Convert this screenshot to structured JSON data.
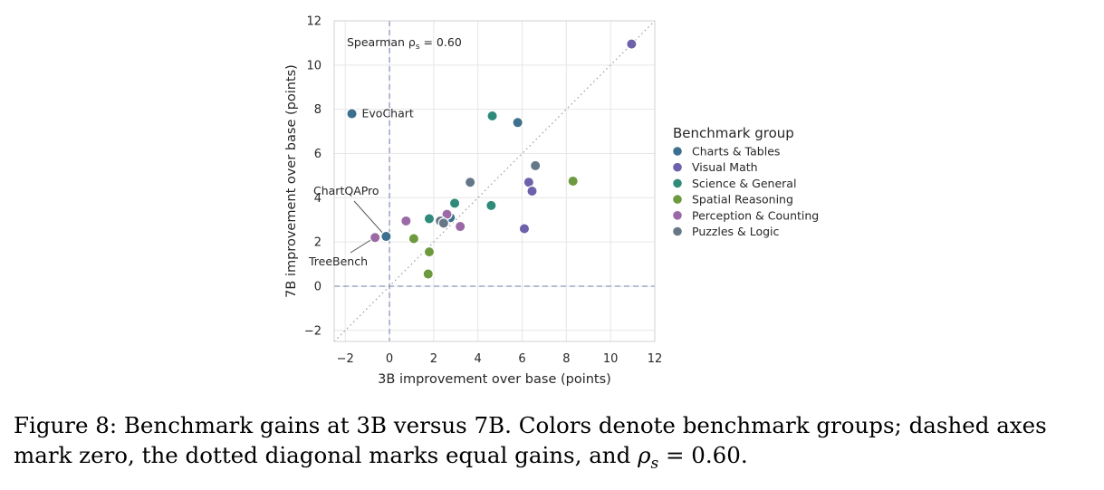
{
  "chart_data": {
    "type": "scatter",
    "xlabel": "3B improvement over base (points)",
    "ylabel": "7B improvement over base (points)",
    "xlim": [
      -2.5,
      12
    ],
    "ylim": [
      -2.5,
      12
    ],
    "xticks": [
      -2,
      0,
      2,
      4,
      6,
      8,
      10,
      12
    ],
    "yticks": [
      -2,
      0,
      2,
      4,
      6,
      8,
      10,
      12
    ],
    "xtick_labels": [
      "−2",
      "0",
      "2",
      "4",
      "6",
      "8",
      "10",
      "12"
    ],
    "ytick_labels": [
      "−2",
      "0",
      "2",
      "4",
      "6",
      "8",
      "10",
      "12"
    ],
    "grid": true,
    "reference_lines": {
      "x_zero": "dashed",
      "y_zero": "dashed",
      "diagonal": "dotted"
    },
    "annotation_text": "Spearman ρ",
    "annotation_sub": "s",
    "annotation_value": " = 0.60",
    "labeled_points": [
      {
        "text": "EvoChart",
        "x": -1.7,
        "y": 7.8
      },
      {
        "text": "ChartQAPro",
        "x": -0.15,
        "y": 2.25
      },
      {
        "text": "TreeBench",
        "x": -0.7,
        "y": 2.2
      }
    ],
    "legend_title": "Benchmark group",
    "legend_position": "right",
    "series": [
      {
        "name": "Charts & Tables",
        "color": "#3d6f8e",
        "points": [
          [
            -1.7,
            7.8
          ],
          [
            -0.15,
            2.25
          ],
          [
            5.8,
            7.4
          ],
          [
            2.75,
            3.1
          ]
        ]
      },
      {
        "name": "Visual Math",
        "color": "#6c62aa",
        "points": [
          [
            10.95,
            10.95
          ],
          [
            6.3,
            4.7
          ],
          [
            6.45,
            4.3
          ],
          [
            6.1,
            2.6
          ]
        ]
      },
      {
        "name": "Science & General",
        "color": "#2e8b7a",
        "points": [
          [
            4.65,
            7.7
          ],
          [
            4.6,
            3.65
          ],
          [
            1.8,
            3.05
          ],
          [
            2.95,
            3.75
          ]
        ]
      },
      {
        "name": "Spatial Reasoning",
        "color": "#6e9a3f",
        "points": [
          [
            8.3,
            4.75
          ],
          [
            1.1,
            2.15
          ],
          [
            1.8,
            1.55
          ],
          [
            1.75,
            0.55
          ]
        ]
      },
      {
        "name": "Perception & Counting",
        "color": "#9b6aa6",
        "points": [
          [
            -0.65,
            2.2
          ],
          [
            0.75,
            2.95
          ],
          [
            2.6,
            3.25
          ],
          [
            3.2,
            2.7
          ]
        ]
      },
      {
        "name": "Puzzles & Logic",
        "color": "#667788",
        "points": [
          [
            3.65,
            4.7
          ],
          [
            6.6,
            5.45
          ],
          [
            2.3,
            2.95
          ],
          [
            2.45,
            2.85
          ]
        ]
      }
    ]
  },
  "caption": {
    "prefix": "Figure 8: Benchmark gains at 3B versus 7B. Colors denote benchmark groups; dashed axes mark zero, the dotted diagonal marks equal gains, and ",
    "rho": "ρ",
    "rho_sub": "s",
    "suffix": " = 0.60."
  }
}
